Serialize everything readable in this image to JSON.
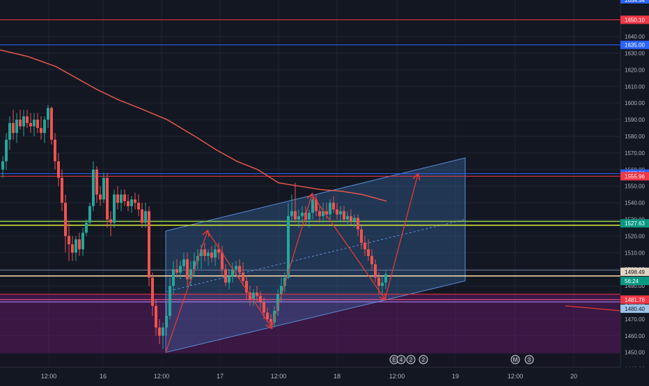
{
  "chart_data": {
    "type": "candlestick",
    "instrument_prices": {
      "ylim": [
        1430,
        1662
      ],
      "y_ticks": [
        1440,
        1450,
        1460,
        1470,
        1480,
        1490,
        1500,
        1510,
        1520,
        1530,
        1540,
        1550,
        1560,
        1570,
        1580,
        1590,
        1600,
        1610,
        1620,
        1630,
        1640
      ],
      "x_ticks": [
        "12:00",
        "16",
        "12:00",
        "17",
        "12:00",
        "18",
        "12:00",
        "19",
        "12:00",
        "20"
      ],
      "top_partial_label": "1654.54"
    },
    "price_labels": [
      {
        "value": "1650.10",
        "color": "#f23645"
      },
      {
        "value": "1635.00",
        "color": "#2962ff"
      },
      {
        "value": "1557.56",
        "color": "#2962ff"
      },
      {
        "value": "1555.96",
        "color": "#f23645"
      },
      {
        "value": "1527.63",
        "color": "#089981"
      },
      {
        "value": "1498.49",
        "color": "#e0d6c3"
      },
      {
        "value": "56:24",
        "color": "#089981"
      },
      {
        "value": "1481.76",
        "color": "#f23645"
      },
      {
        "value": "1480.40",
        "color": "#9fc4e8"
      }
    ],
    "horizontal_lines": [
      {
        "y": 1650.1,
        "color": "#f23645"
      },
      {
        "y": 1635.0,
        "color": "#2962ff"
      },
      {
        "y": 1557.56,
        "color": "#2962ff"
      },
      {
        "y": 1555.96,
        "color": "#f23645"
      },
      {
        "y": 1528.8,
        "color": "#8bc34a"
      },
      {
        "y": 1526.5,
        "color": "#cddc39"
      },
      {
        "y": 1499.5,
        "color": "#6b7a99"
      },
      {
        "y": 1496.0,
        "color": "#ffe0a8"
      },
      {
        "y": 1485.0,
        "color": "#f23645"
      },
      {
        "y": 1481.76,
        "color": "#f06292"
      },
      {
        "y": 1480.4,
        "color": "#b388ff"
      }
    ],
    "moving_average": [
      [
        0,
        1632
      ],
      [
        40,
        1628
      ],
      [
        80,
        1622
      ],
      [
        110,
        1615
      ],
      [
        140,
        1608
      ],
      [
        170,
        1602
      ],
      [
        200,
        1597
      ],
      [
        240,
        1590
      ],
      [
        280,
        1580
      ],
      [
        310,
        1572
      ],
      [
        340,
        1565
      ],
      [
        370,
        1560
      ],
      [
        400,
        1552
      ],
      [
        430,
        1550
      ],
      [
        460,
        1548
      ],
      [
        490,
        1547
      ],
      [
        520,
        1545
      ],
      [
        555,
        1541
      ]
    ],
    "channel": {
      "lower_start": [
        238,
        1450
      ],
      "lower_end": [
        668,
        1493
      ],
      "upper_start": [
        238,
        1523
      ],
      "upper_end": [
        668,
        1567
      ]
    },
    "zigzag": [
      [
        238,
        1450
      ],
      [
        298,
        1523
      ],
      [
        390,
        1465
      ],
      [
        448,
        1545
      ],
      [
        553,
        1482
      ],
      [
        600,
        1557
      ]
    ],
    "stray_line": [
      [
        812,
        1478
      ],
      [
        892,
        1475
      ]
    ],
    "candles": [
      {
        "x": 4,
        "o": 1560,
        "h": 1568,
        "l": 1555,
        "c": 1565
      },
      {
        "x": 9,
        "o": 1565,
        "h": 1582,
        "l": 1560,
        "c": 1578
      },
      {
        "x": 14,
        "o": 1578,
        "h": 1592,
        "l": 1572,
        "c": 1588
      },
      {
        "x": 19,
        "o": 1588,
        "h": 1596,
        "l": 1578,
        "c": 1582
      },
      {
        "x": 24,
        "o": 1582,
        "h": 1594,
        "l": 1576,
        "c": 1590
      },
      {
        "x": 29,
        "o": 1590,
        "h": 1596,
        "l": 1584,
        "c": 1586
      },
      {
        "x": 34,
        "o": 1586,
        "h": 1596,
        "l": 1580,
        "c": 1592
      },
      {
        "x": 39,
        "o": 1592,
        "h": 1596,
        "l": 1585,
        "c": 1588
      },
      {
        "x": 44,
        "o": 1588,
        "h": 1594,
        "l": 1582,
        "c": 1586
      },
      {
        "x": 49,
        "o": 1586,
        "h": 1594,
        "l": 1580,
        "c": 1590
      },
      {
        "x": 54,
        "o": 1590,
        "h": 1594,
        "l": 1582,
        "c": 1585
      },
      {
        "x": 59,
        "o": 1585,
        "h": 1592,
        "l": 1578,
        "c": 1582
      },
      {
        "x": 64,
        "o": 1582,
        "h": 1592,
        "l": 1576,
        "c": 1590
      },
      {
        "x": 69,
        "o": 1590,
        "h": 1599,
        "l": 1585,
        "c": 1597
      },
      {
        "x": 74,
        "o": 1597,
        "h": 1598,
        "l": 1575,
        "c": 1578
      },
      {
        "x": 79,
        "o": 1578,
        "h": 1582,
        "l": 1560,
        "c": 1565
      },
      {
        "x": 84,
        "o": 1565,
        "h": 1570,
        "l": 1550,
        "c": 1555
      },
      {
        "x": 89,
        "o": 1555,
        "h": 1560,
        "l": 1535,
        "c": 1540
      },
      {
        "x": 94,
        "o": 1540,
        "h": 1545,
        "l": 1510,
        "c": 1520
      },
      {
        "x": 99,
        "o": 1520,
        "h": 1528,
        "l": 1505,
        "c": 1515
      },
      {
        "x": 104,
        "o": 1515,
        "h": 1520,
        "l": 1505,
        "c": 1510
      },
      {
        "x": 109,
        "o": 1510,
        "h": 1520,
        "l": 1505,
        "c": 1518
      },
      {
        "x": 114,
        "o": 1518,
        "h": 1522,
        "l": 1508,
        "c": 1512
      },
      {
        "x": 119,
        "o": 1512,
        "h": 1525,
        "l": 1508,
        "c": 1522
      },
      {
        "x": 124,
        "o": 1522,
        "h": 1530,
        "l": 1520,
        "c": 1528
      },
      {
        "x": 129,
        "o": 1528,
        "h": 1540,
        "l": 1526,
        "c": 1538
      },
      {
        "x": 134,
        "o": 1538,
        "h": 1565,
        "l": 1535,
        "c": 1560
      },
      {
        "x": 139,
        "o": 1560,
        "h": 1562,
        "l": 1540,
        "c": 1545
      },
      {
        "x": 144,
        "o": 1545,
        "h": 1550,
        "l": 1538,
        "c": 1542
      },
      {
        "x": 149,
        "o": 1542,
        "h": 1558,
        "l": 1540,
        "c": 1555
      },
      {
        "x": 154,
        "o": 1555,
        "h": 1558,
        "l": 1525,
        "c": 1530
      },
      {
        "x": 159,
        "o": 1530,
        "h": 1535,
        "l": 1520,
        "c": 1528
      },
      {
        "x": 164,
        "o": 1528,
        "h": 1548,
        "l": 1525,
        "c": 1545
      },
      {
        "x": 169,
        "o": 1545,
        "h": 1550,
        "l": 1536,
        "c": 1540
      },
      {
        "x": 174,
        "o": 1540,
        "h": 1548,
        "l": 1535,
        "c": 1545
      },
      {
        "x": 179,
        "o": 1545,
        "h": 1548,
        "l": 1538,
        "c": 1541
      },
      {
        "x": 184,
        "o": 1541,
        "h": 1545,
        "l": 1535,
        "c": 1538
      },
      {
        "x": 189,
        "o": 1538,
        "h": 1544,
        "l": 1534,
        "c": 1542
      },
      {
        "x": 194,
        "o": 1542,
        "h": 1546,
        "l": 1536,
        "c": 1540
      },
      {
        "x": 199,
        "o": 1540,
        "h": 1545,
        "l": 1532,
        "c": 1536
      },
      {
        "x": 204,
        "o": 1536,
        "h": 1540,
        "l": 1525,
        "c": 1528
      },
      {
        "x": 209,
        "o": 1528,
        "h": 1540,
        "l": 1525,
        "c": 1535
      },
      {
        "x": 214,
        "o": 1535,
        "h": 1538,
        "l": 1490,
        "c": 1495
      },
      {
        "x": 219,
        "o": 1495,
        "h": 1498,
        "l": 1472,
        "c": 1478
      },
      {
        "x": 224,
        "o": 1478,
        "h": 1482,
        "l": 1460,
        "c": 1465
      },
      {
        "x": 229,
        "o": 1465,
        "h": 1470,
        "l": 1455,
        "c": 1460
      },
      {
        "x": 234,
        "o": 1460,
        "h": 1468,
        "l": 1452,
        "c": 1465
      },
      {
        "x": 239,
        "o": 1465,
        "h": 1480,
        "l": 1460,
        "c": 1472
      },
      {
        "x": 244,
        "o": 1472,
        "h": 1495,
        "l": 1470,
        "c": 1490
      },
      {
        "x": 249,
        "o": 1490,
        "h": 1505,
        "l": 1485,
        "c": 1500
      },
      {
        "x": 254,
        "o": 1500,
        "h": 1506,
        "l": 1495,
        "c": 1498
      },
      {
        "x": 259,
        "o": 1498,
        "h": 1505,
        "l": 1494,
        "c": 1502
      },
      {
        "x": 264,
        "o": 1502,
        "h": 1510,
        "l": 1500,
        "c": 1506
      },
      {
        "x": 269,
        "o": 1506,
        "h": 1510,
        "l": 1490,
        "c": 1494
      },
      {
        "x": 274,
        "o": 1494,
        "h": 1505,
        "l": 1490,
        "c": 1500
      },
      {
        "x": 279,
        "o": 1500,
        "h": 1510,
        "l": 1496,
        "c": 1505
      },
      {
        "x": 284,
        "o": 1505,
        "h": 1512,
        "l": 1500,
        "c": 1508
      },
      {
        "x": 289,
        "o": 1508,
        "h": 1515,
        "l": 1500,
        "c": 1512
      },
      {
        "x": 294,
        "o": 1512,
        "h": 1516,
        "l": 1505,
        "c": 1508
      },
      {
        "x": 299,
        "o": 1508,
        "h": 1512,
        "l": 1502,
        "c": 1510
      },
      {
        "x": 304,
        "o": 1510,
        "h": 1514,
        "l": 1504,
        "c": 1507
      },
      {
        "x": 309,
        "o": 1507,
        "h": 1515,
        "l": 1502,
        "c": 1512
      },
      {
        "x": 314,
        "o": 1512,
        "h": 1516,
        "l": 1506,
        "c": 1510
      },
      {
        "x": 319,
        "o": 1510,
        "h": 1514,
        "l": 1496,
        "c": 1500
      },
      {
        "x": 324,
        "o": 1500,
        "h": 1503,
        "l": 1490,
        "c": 1492
      },
      {
        "x": 329,
        "o": 1492,
        "h": 1500,
        "l": 1488,
        "c": 1496
      },
      {
        "x": 334,
        "o": 1496,
        "h": 1504,
        "l": 1492,
        "c": 1500
      },
      {
        "x": 339,
        "o": 1500,
        "h": 1505,
        "l": 1495,
        "c": 1502
      },
      {
        "x": 344,
        "o": 1502,
        "h": 1506,
        "l": 1494,
        "c": 1498
      },
      {
        "x": 349,
        "o": 1498,
        "h": 1504,
        "l": 1490,
        "c": 1493
      },
      {
        "x": 354,
        "o": 1493,
        "h": 1496,
        "l": 1482,
        "c": 1486
      },
      {
        "x": 359,
        "o": 1486,
        "h": 1490,
        "l": 1478,
        "c": 1482
      },
      {
        "x": 364,
        "o": 1482,
        "h": 1488,
        "l": 1478,
        "c": 1486
      },
      {
        "x": 369,
        "o": 1486,
        "h": 1490,
        "l": 1480,
        "c": 1484
      },
      {
        "x": 374,
        "o": 1484,
        "h": 1487,
        "l": 1476,
        "c": 1480
      },
      {
        "x": 379,
        "o": 1480,
        "h": 1483,
        "l": 1470,
        "c": 1474
      },
      {
        "x": 384,
        "o": 1474,
        "h": 1477,
        "l": 1468,
        "c": 1470
      },
      {
        "x": 389,
        "o": 1470,
        "h": 1473,
        "l": 1464,
        "c": 1468
      },
      {
        "x": 394,
        "o": 1468,
        "h": 1478,
        "l": 1465,
        "c": 1475
      },
      {
        "x": 399,
        "o": 1475,
        "h": 1488,
        "l": 1472,
        "c": 1485
      },
      {
        "x": 404,
        "o": 1485,
        "h": 1495,
        "l": 1480,
        "c": 1490
      },
      {
        "x": 409,
        "o": 1490,
        "h": 1498,
        "l": 1486,
        "c": 1495
      },
      {
        "x": 414,
        "o": 1495,
        "h": 1540,
        "l": 1494,
        "c": 1532
      },
      {
        "x": 419,
        "o": 1532,
        "h": 1545,
        "l": 1528,
        "c": 1535
      },
      {
        "x": 424,
        "o": 1535,
        "h": 1552,
        "l": 1528,
        "c": 1530
      },
      {
        "x": 429,
        "o": 1530,
        "h": 1536,
        "l": 1525,
        "c": 1532
      },
      {
        "x": 434,
        "o": 1532,
        "h": 1538,
        "l": 1528,
        "c": 1534
      },
      {
        "x": 439,
        "o": 1534,
        "h": 1538,
        "l": 1526,
        "c": 1530
      },
      {
        "x": 444,
        "o": 1530,
        "h": 1536,
        "l": 1525,
        "c": 1534
      },
      {
        "x": 449,
        "o": 1534,
        "h": 1546,
        "l": 1530,
        "c": 1542
      },
      {
        "x": 454,
        "o": 1542,
        "h": 1545,
        "l": 1532,
        "c": 1535
      },
      {
        "x": 459,
        "o": 1535,
        "h": 1538,
        "l": 1528,
        "c": 1532
      },
      {
        "x": 464,
        "o": 1532,
        "h": 1540,
        "l": 1528,
        "c": 1535
      },
      {
        "x": 469,
        "o": 1535,
        "h": 1540,
        "l": 1530,
        "c": 1533
      },
      {
        "x": 474,
        "o": 1533,
        "h": 1542,
        "l": 1530,
        "c": 1540
      },
      {
        "x": 479,
        "o": 1540,
        "h": 1544,
        "l": 1534,
        "c": 1536
      },
      {
        "x": 484,
        "o": 1536,
        "h": 1540,
        "l": 1530,
        "c": 1533
      },
      {
        "x": 489,
        "o": 1533,
        "h": 1538,
        "l": 1528,
        "c": 1535
      },
      {
        "x": 494,
        "o": 1535,
        "h": 1538,
        "l": 1528,
        "c": 1530
      },
      {
        "x": 499,
        "o": 1530,
        "h": 1535,
        "l": 1526,
        "c": 1532
      },
      {
        "x": 504,
        "o": 1532,
        "h": 1536,
        "l": 1527,
        "c": 1529
      },
      {
        "x": 509,
        "o": 1529,
        "h": 1533,
        "l": 1525,
        "c": 1531
      },
      {
        "x": 514,
        "o": 1531,
        "h": 1533,
        "l": 1520,
        "c": 1524
      },
      {
        "x": 519,
        "o": 1524,
        "h": 1526,
        "l": 1512,
        "c": 1516
      },
      {
        "x": 524,
        "o": 1516,
        "h": 1520,
        "l": 1508,
        "c": 1512
      },
      {
        "x": 529,
        "o": 1512,
        "h": 1518,
        "l": 1505,
        "c": 1508
      },
      {
        "x": 534,
        "o": 1508,
        "h": 1512,
        "l": 1500,
        "c": 1503
      },
      {
        "x": 539,
        "o": 1503,
        "h": 1506,
        "l": 1492,
        "c": 1495
      },
      {
        "x": 544,
        "o": 1495,
        "h": 1498,
        "l": 1485,
        "c": 1490
      },
      {
        "x": 549,
        "o": 1490,
        "h": 1496,
        "l": 1484,
        "c": 1492
      },
      {
        "x": 554,
        "o": 1492,
        "h": 1499,
        "l": 1488,
        "c": 1497
      }
    ],
    "event_markers": [
      {
        "x": 566,
        "letter": "E"
      },
      {
        "x": 576,
        "letter": "4"
      },
      {
        "x": 590,
        "letter": "2"
      },
      {
        "x": 608,
        "letter": "2"
      },
      {
        "x": 740,
        "letter": "M"
      },
      {
        "x": 760,
        "letter": "3"
      }
    ],
    "colors": {
      "background": "#131722",
      "up": "#26a69a",
      "down": "#ef5350",
      "grid": "#1f2434",
      "axis_text": "#b2b5be",
      "channel_fill": "#3d6fb0",
      "zigzag": "#e53935",
      "moving_average": "#e5574b"
    }
  }
}
